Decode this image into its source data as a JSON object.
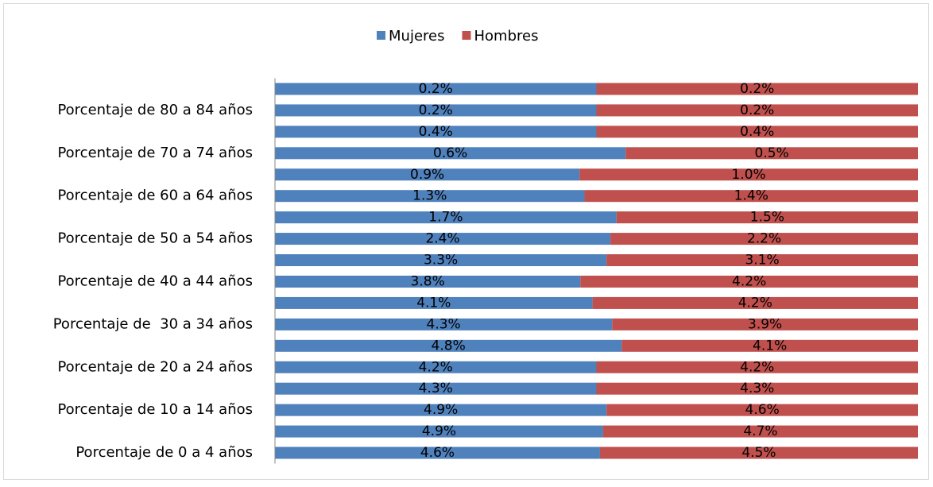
{
  "chart_data": {
    "type": "stacked-bar-100-horizontal",
    "categories": [
      "Porcentaje de 0 a 4 años",
      null,
      "Porcentaje de 10 a 14 años",
      null,
      "Porcentaje de 20 a 24 años",
      null,
      "Porcentaje de  30 a 34 años",
      null,
      "Porcentaje de 40 a 44 años",
      null,
      "Porcentaje de 50 a 54 años",
      null,
      "Porcentaje de 60 a 64 años",
      null,
      "Porcentaje de 70 a 74 años",
      null,
      "Porcentaje de 80 a 84 años",
      null
    ],
    "series": [
      {
        "name": "Mujeres",
        "color": "#4f81bd",
        "values": [
          4.6,
          4.9,
          4.9,
          4.3,
          4.2,
          4.8,
          4.3,
          4.1,
          3.8,
          3.3,
          2.4,
          1.7,
          1.3,
          0.9,
          0.6,
          0.4,
          0.2,
          0.2
        ],
        "value_labels": [
          "4.6%",
          "4.9%",
          "4.9%",
          "4.3%",
          "4.2%",
          "4.8%",
          "4.3%",
          "4.1%",
          "3.8%",
          "3.3%",
          "2.4%",
          "1.7%",
          "1.3%",
          "0.9%",
          "0.6%",
          "0.4%",
          "0.2%",
          "0.2%"
        ]
      },
      {
        "name": "Hombres",
        "color": "#c0504d",
        "values": [
          4.5,
          4.7,
          4.6,
          4.3,
          4.2,
          4.1,
          3.9,
          4.2,
          4.2,
          3.1,
          2.2,
          1.5,
          1.4,
          1.0,
          0.5,
          0.4,
          0.2,
          0.2
        ],
        "value_labels": [
          "4.5%",
          "4.7%",
          "4.6%",
          "4.3%",
          "4.2%",
          "4.1%",
          "3.9%",
          "4.2%",
          "4.2%",
          "3.1%",
          "2.2%",
          "1.5%",
          "1.4%",
          "1.0%",
          "0.5%",
          "0.4%",
          "0.2%",
          "0.2%"
        ]
      }
    ],
    "legend": "top"
  }
}
